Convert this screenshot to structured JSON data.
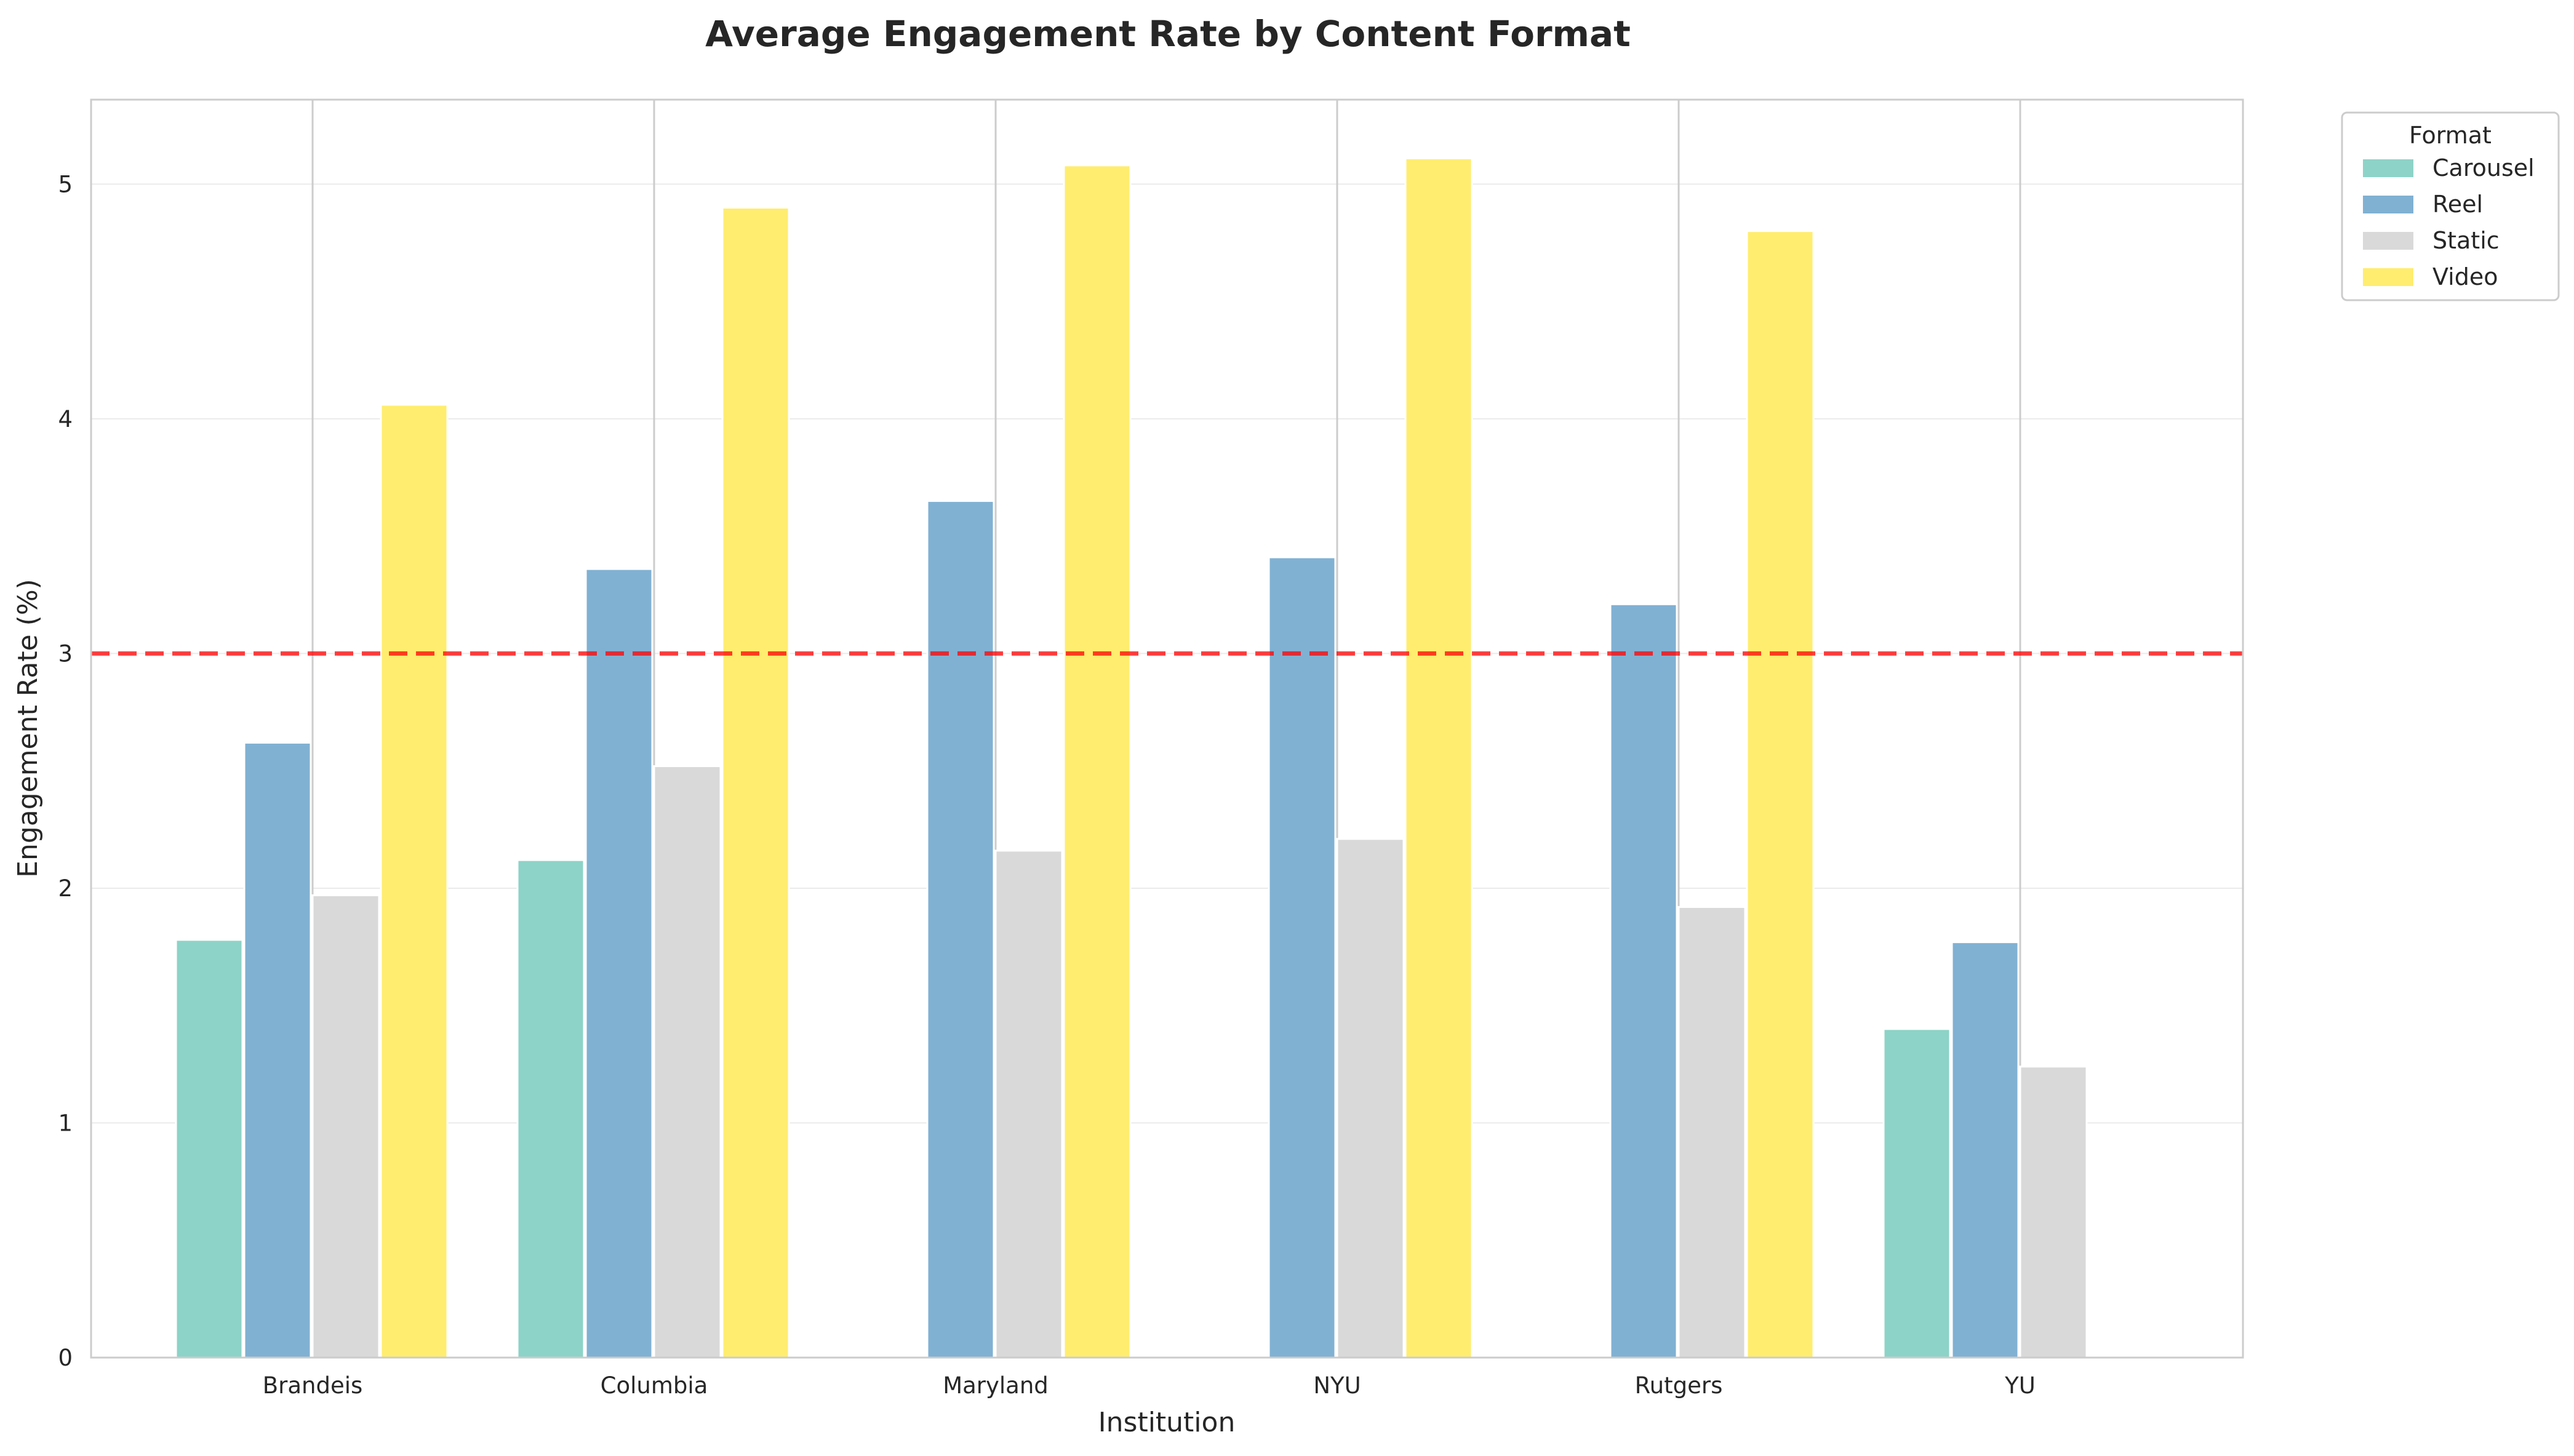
{
  "chart_data": {
    "type": "bar",
    "title": "Average Engagement Rate by Content Format",
    "xlabel": "Institution",
    "ylabel": "Engagement Rate (%)",
    "categories": [
      "Brandeis",
      "Columbia",
      "Maryland",
      "NYU",
      "Rutgers",
      "YU"
    ],
    "series": [
      {
        "name": "Carousel",
        "color": "#8dd3c7",
        "values": [
          1.78,
          2.12,
          null,
          null,
          null,
          1.4
        ]
      },
      {
        "name": "Reel",
        "color": "#80b1d3",
        "values": [
          2.62,
          3.36,
          3.65,
          3.41,
          3.21,
          1.77
        ]
      },
      {
        "name": "Static",
        "color": "#d9d9d9",
        "values": [
          1.97,
          2.52,
          2.16,
          2.21,
          1.92,
          1.24
        ]
      },
      {
        "name": "Video",
        "color": "#ffed6f",
        "values": [
          4.06,
          4.9,
          5.08,
          5.11,
          4.8,
          null
        ]
      }
    ],
    "yticks": [
      "0",
      "1",
      "2",
      "3",
      "4",
      "5"
    ],
    "ylim": [
      0,
      5.36
    ],
    "reference_line": {
      "value": 3.0,
      "color": "#ff0000",
      "style": "dashed"
    },
    "legend": {
      "title": "Format",
      "placement": "outside-top-right"
    },
    "grid": true
  }
}
